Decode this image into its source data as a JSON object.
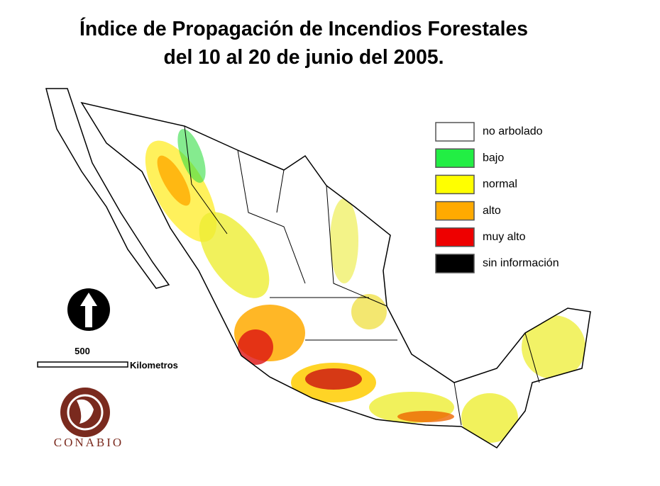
{
  "title": {
    "line1": "Índice de Propagación de Incendios Forestales",
    "line2": "del 10 al 20 de junio del 2005."
  },
  "legend": {
    "items": [
      {
        "label": "no arbolado",
        "color": "#ffffff"
      },
      {
        "label": "bajo",
        "color": "#22ee44"
      },
      {
        "label": "normal",
        "color": "#ffff00"
      },
      {
        "label": "alto",
        "color": "#ffaa00"
      },
      {
        "label": "muy alto",
        "color": "#ee0000"
      },
      {
        "label": "sin información",
        "color": "#000000"
      }
    ]
  },
  "scale_bar": {
    "value_label": "500",
    "unit": "Kilometros"
  },
  "logo": {
    "text": "CONABIO"
  }
}
